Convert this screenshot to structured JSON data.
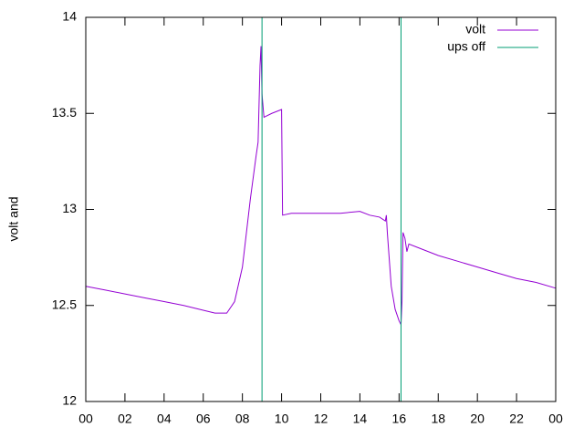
{
  "chart_data": {
    "type": "line",
    "ylabel": "volt and",
    "xlim": [
      0,
      24
    ],
    "ylim": [
      12,
      14
    ],
    "xticks": [
      {
        "value": 0,
        "label": "00"
      },
      {
        "value": 2,
        "label": "02"
      },
      {
        "value": 4,
        "label": "04"
      },
      {
        "value": 6,
        "label": "06"
      },
      {
        "value": 8,
        "label": "08"
      },
      10,
      12,
      14,
      16,
      18,
      20,
      22,
      {
        "value": 24,
        "label": "00"
      }
    ],
    "yticks": [
      12,
      12.5,
      13,
      13.5,
      14
    ],
    "legend": "top-right",
    "series": [
      {
        "name": "volt",
        "color": "#9400d3",
        "x": [
          0,
          1,
          2,
          3,
          4,
          5,
          6,
          6.6,
          7.2,
          7.6,
          8.0,
          8.4,
          8.7,
          8.8,
          8.9,
          8.95,
          9.0,
          9.1,
          9.5,
          10.0,
          10.05,
          10.5,
          11,
          12,
          13,
          14,
          14.5,
          15,
          15.3,
          15.35,
          15.4,
          15.6,
          15.8,
          16.0,
          16.1,
          16.15,
          16.2,
          16.3,
          16.4,
          16.5,
          17,
          18,
          19,
          20,
          21,
          22,
          23,
          24
        ],
        "values": [
          12.6,
          12.58,
          12.56,
          12.54,
          12.52,
          12.5,
          12.475,
          12.46,
          12.46,
          12.52,
          12.7,
          13.05,
          13.28,
          13.35,
          13.75,
          13.85,
          13.6,
          13.48,
          13.5,
          13.52,
          12.97,
          12.98,
          12.98,
          12.98,
          12.98,
          12.99,
          12.97,
          12.96,
          12.94,
          12.97,
          12.88,
          12.6,
          12.48,
          12.42,
          12.4,
          12.52,
          12.88,
          12.85,
          12.78,
          12.82,
          12.8,
          12.76,
          12.73,
          12.7,
          12.67,
          12.64,
          12.62,
          12.59
        ]
      },
      {
        "name": "ups off",
        "color": "#009e73",
        "x": [
          9.0,
          9.0,
          null,
          16.1,
          16.1
        ],
        "values": [
          12,
          14,
          null,
          12,
          14
        ]
      }
    ]
  }
}
